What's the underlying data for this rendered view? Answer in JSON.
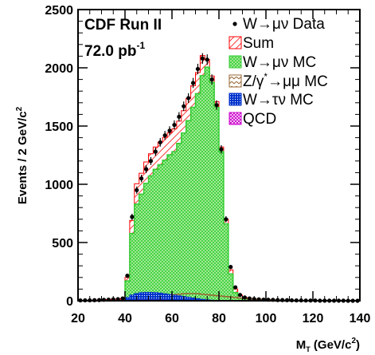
{
  "chart_data": {
    "type": "stacked-histogram",
    "annotation_title": "CDF Run II",
    "annotation_lumi": "72.0 pb",
    "annotation_lumi_sup": "-1",
    "ylabel": "Events / 2 GeV/c",
    "ylabel_sup": "2",
    "xlabel": "M",
    "xlabel_sub": "T",
    "xlabel_unit": " (GeV/c",
    "xlabel_unit_sup": "2",
    "xlabel_close": ")",
    "xlim": [
      20,
      140
    ],
    "ylim": [
      0,
      2500
    ],
    "bin_width": 2,
    "x_ticks": [
      "20",
      "40",
      "60",
      "80",
      "100",
      "120",
      "140"
    ],
    "y_ticks": [
      "0",
      "500",
      "1000",
      "1500",
      "2000",
      "2500"
    ],
    "bin_edges_start": 20,
    "series": [
      {
        "name": "QCD",
        "color": "#cc00cc",
        "values": [
          0,
          0,
          0,
          0,
          0,
          0,
          0,
          0,
          0,
          0,
          2,
          3,
          4,
          4,
          4,
          4,
          4,
          4,
          4,
          3,
          3,
          3,
          3,
          3,
          3,
          2,
          2,
          2,
          2,
          2,
          1,
          1,
          1,
          1,
          1,
          0,
          0,
          0,
          0,
          0,
          0,
          0,
          0,
          0,
          0,
          0,
          0,
          0,
          0,
          0,
          0,
          0,
          0,
          0,
          0,
          0,
          0,
          0,
          0,
          0
        ]
      },
      {
        "name": "W→τν MC",
        "color": "#0033cc",
        "values": [
          0,
          0,
          0,
          0,
          0,
          0,
          0,
          0,
          0,
          0,
          28,
          50,
          62,
          70,
          72,
          72,
          70,
          66,
          60,
          54,
          48,
          42,
          36,
          30,
          24,
          18,
          12,
          8,
          5,
          3,
          2,
          1,
          1,
          0,
          0,
          0,
          0,
          0,
          0,
          0,
          0,
          0,
          0,
          0,
          0,
          0,
          0,
          0,
          0,
          0,
          0,
          0,
          0,
          0,
          0,
          0,
          0,
          0,
          0,
          0
        ]
      },
      {
        "name": "Z/γ*→μμ MC",
        "color": "#996633",
        "values": [
          0,
          0,
          0,
          0,
          0,
          0,
          0,
          0,
          0,
          0,
          2,
          4,
          6,
          10,
          16,
          22,
          28,
          34,
          40,
          46,
          52,
          56,
          60,
          62,
          62,
          60,
          56,
          52,
          48,
          44,
          40,
          36,
          32,
          28,
          24,
          20,
          16,
          13,
          11,
          9,
          8,
          7,
          6,
          5,
          4,
          3,
          2,
          2,
          1,
          1,
          0,
          0,
          0,
          0,
          0,
          0,
          0,
          0,
          0,
          0
        ]
      },
      {
        "name": "W→μν MC",
        "color": "#33cc33",
        "values": [
          0,
          0,
          0,
          0,
          0,
          0,
          0,
          0,
          0,
          0,
          170,
          578,
          830,
          915,
          1008,
          1072,
          1128,
          1168,
          1206,
          1253,
          1280,
          1351,
          1440,
          1546,
          1661,
          1778,
          1932,
          2006,
          1875,
          1660,
          1280,
          660,
          230,
          70,
          22,
          6,
          2,
          0,
          0,
          0,
          0,
          0,
          0,
          0,
          0,
          0,
          0,
          0,
          0,
          0,
          0,
          0,
          0,
          0,
          0,
          0,
          0,
          0,
          0,
          0
        ]
      }
    ],
    "sum": {
      "name": "Sum",
      "color": "#ff0000",
      "values": [
        3,
        3,
        4,
        5,
        6,
        8,
        10,
        12,
        14,
        18,
        200,
        690,
        1004,
        1095,
        1192,
        1262,
        1320,
        1362,
        1402,
        1442,
        1476,
        1542,
        1632,
        1737,
        1846,
        1960,
        2105,
        2070,
        1930,
        1710,
        1320,
        700,
        265,
        100,
        48,
        27,
        20,
        15,
        12,
        10,
        9,
        8,
        7,
        6,
        5,
        4,
        3,
        3,
        2,
        2,
        2,
        1,
        1,
        1,
        1,
        1,
        1,
        0,
        0,
        0
      ]
    },
    "data": {
      "name": "W→μν Data",
      "color": "#000000",
      "values": [
        3,
        4,
        4,
        5,
        6,
        8,
        10,
        12,
        14,
        20,
        215,
        720,
        950,
        1050,
        1130,
        1200,
        1280,
        1360,
        1420,
        1460,
        1510,
        1580,
        1670,
        1740,
        1870,
        1990,
        2080,
        2070,
        1900,
        1680,
        1300,
        700,
        290,
        115,
        50,
        28,
        20,
        15,
        12,
        10,
        9,
        8,
        6,
        6,
        5,
        4,
        3,
        3,
        2,
        2,
        2,
        1,
        1,
        1,
        1,
        1,
        1,
        0,
        0,
        0
      ]
    },
    "legend": [
      {
        "label": "W→μν Data",
        "kind": "marker"
      },
      {
        "label": "Sum",
        "kind": "sum"
      },
      {
        "label": "W→μν MC",
        "kind": "wmu"
      },
      {
        "label": "Z/γ",
        "label_sup": "*",
        "label_rest": "→μμ MC",
        "kind": "z"
      },
      {
        "label": "W→τν MC",
        "kind": "wtau"
      },
      {
        "label": "QCD",
        "kind": "qcd"
      }
    ],
    "legend_position": "top-right",
    "grid": false
  }
}
